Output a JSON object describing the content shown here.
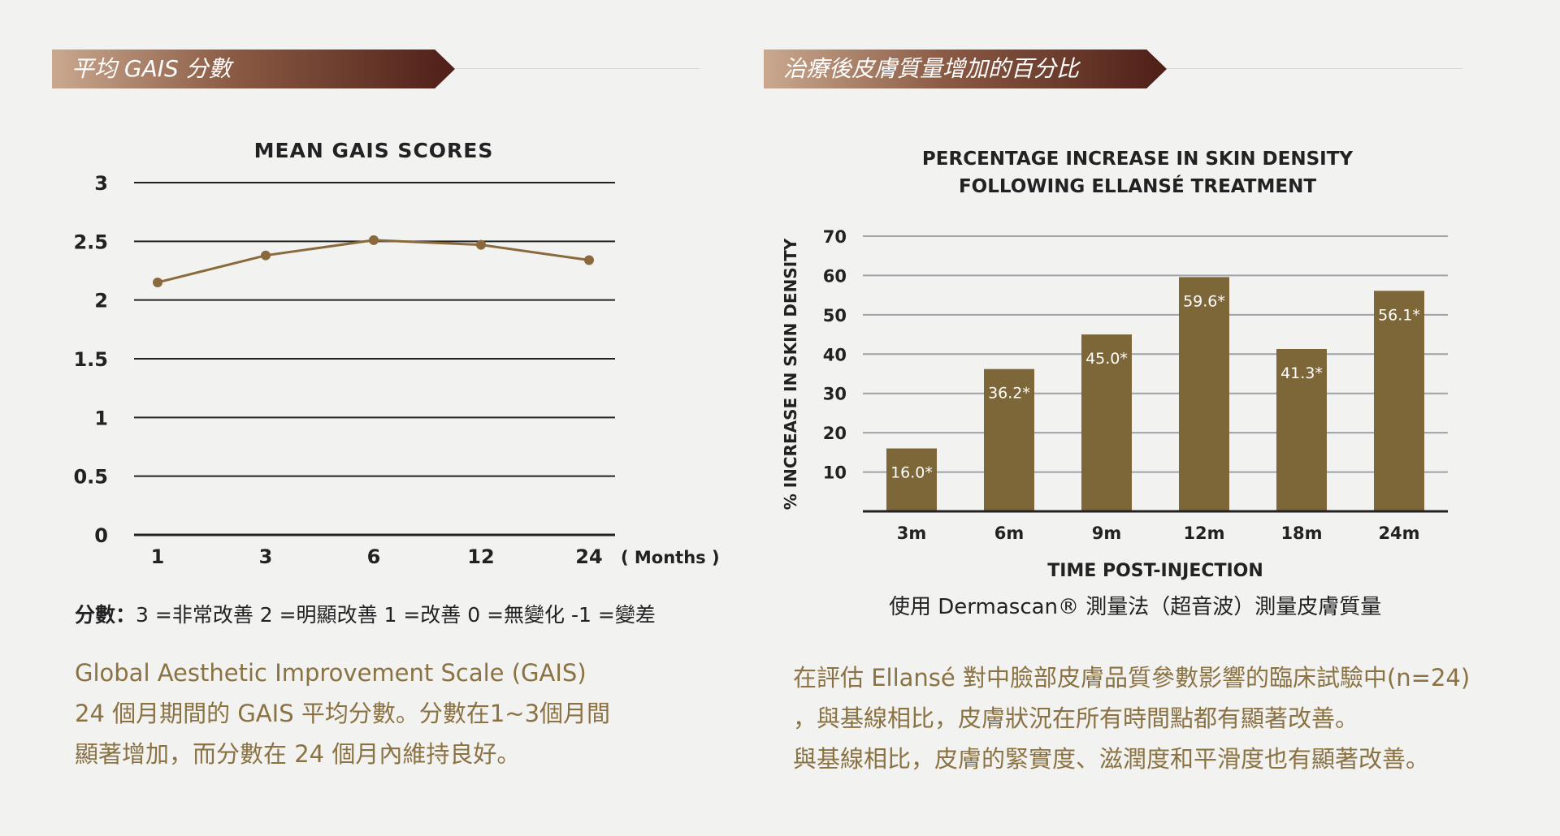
{
  "left": {
    "banner": "平均 GAIS 分數",
    "legend_prefix": "分數：",
    "legend_text": "3 =非常改善  2 =明顯改善 1 =改善  0 =無變化 -1 =變差",
    "paragraph": [
      "Global Aesthetic Improvement Scale (GAIS)",
      "24 個月期間的 GAIS 平均分數。分數在1~3個月間",
      "顯著增加，而分數在 24 個月內維持良好。"
    ]
  },
  "right": {
    "banner": "治療後皮膚質量增加的百分比",
    "note": "使用 Dermascan® 測量法（超音波）測量皮膚質量",
    "paragraph": [
      "在評估 Ellansé 對中臉部皮膚品質參數影響的臨床試驗中(n=24)",
      "，與基線相比，皮膚狀況在所有時間點都有顯著改善。",
      "與基線相比，皮膚的緊實度、滋潤度和平滑度也有顯著改善。"
    ]
  },
  "colors": {
    "line": "#8a6a3c",
    "bar": "#7d6638",
    "accent_text": "#8a7242"
  },
  "chart_data": [
    {
      "type": "line",
      "title": "MEAN GAIS SCORES",
      "x": [
        "1",
        "3",
        "6",
        "12",
        "24"
      ],
      "x_unit_label": "( Months )",
      "ylim": [
        0,
        3
      ],
      "yticks": [
        "0",
        "0.5",
        "1",
        "1.5",
        "2",
        "2.5",
        "3"
      ],
      "ytick_values": [
        0,
        0.5,
        1,
        1.5,
        2,
        2.5,
        3
      ],
      "series": [
        {
          "values": [
            2.15,
            2.38,
            2.51,
            2.47,
            2.34
          ]
        }
      ],
      "grid": true
    },
    {
      "type": "bar",
      "title": [
        "PERCENTAGE INCREASE IN SKIN DENSITY",
        "FOLLOWING ELLANSÉ TREATMENT"
      ],
      "categories": [
        "3m",
        "6m",
        "9m",
        "12m",
        "18m",
        "24m"
      ],
      "values": [
        16.0,
        36.2,
        45.0,
        59.6,
        41.3,
        56.1
      ],
      "labels": [
        "16.0*",
        "36.2*",
        "45.0*",
        "59.6*",
        "41.3*",
        "56.1*"
      ],
      "xlabel": "TIME POST-INJECTION",
      "ylabel": "% INCREASE IN SKIN DENSITY",
      "ylim": [
        0,
        70
      ],
      "yticks": [
        "10",
        "20",
        "30",
        "40",
        "50",
        "60",
        "70"
      ],
      "ytick_values": [
        10,
        20,
        30,
        40,
        50,
        60,
        70
      ],
      "grid": true
    }
  ]
}
